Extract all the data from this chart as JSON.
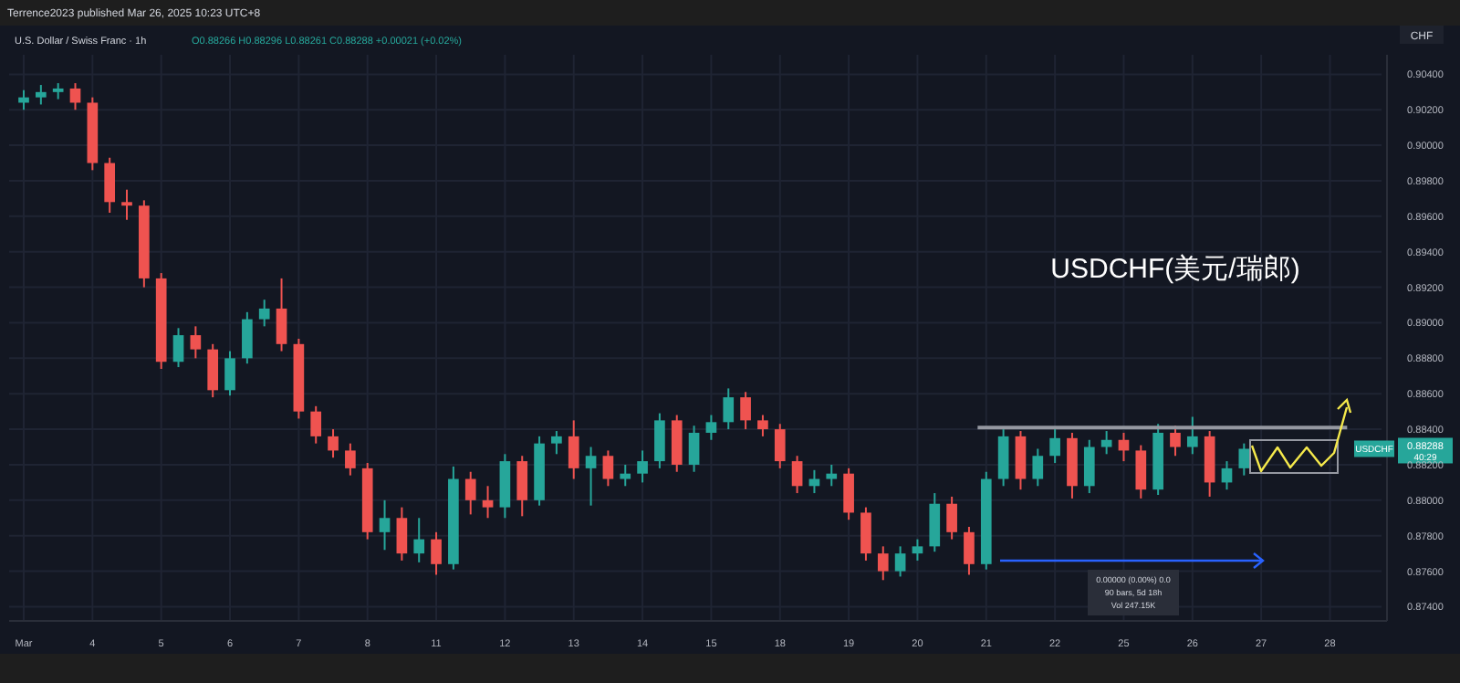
{
  "chart_data": {
    "type": "candlestick",
    "title": "U.S. Dollar / Swiss Franc · 1h",
    "ylabel": "CHF",
    "annotations": [
      "Terrence2023 published Mar 26, 2025 10:23 UTC+8",
      "O0.88266 H0.88296 L0.88261 C0.88288 +0.00021 (+0.02%)",
      "USDCHF(美元/瑞郎)",
      "0.00000 (0.00%) 0.0",
      "90 bars, 5d 18h",
      "Vol 247.15K",
      "USDCHF",
      "0.88288",
      "40:29"
    ],
    "categories": [
      "Mar",
      null,
      null,
      null,
      "4",
      null,
      null,
      null,
      "5",
      null,
      null,
      null,
      "6",
      null,
      null,
      null,
      "7",
      null,
      null,
      null,
      "8",
      null,
      null,
      null,
      "11",
      null,
      null,
      null,
      "12",
      null,
      null,
      null,
      "13",
      null,
      null,
      null,
      "14",
      null,
      null,
      null,
      "15",
      null,
      null,
      null,
      "18",
      null,
      null,
      null,
      "19",
      null,
      null,
      null,
      "20",
      null,
      null,
      null,
      "21",
      null,
      null,
      null,
      "22",
      null,
      null,
      null,
      "25",
      null,
      null,
      null,
      "26",
      null,
      null,
      null,
      "27",
      null,
      null,
      null,
      "28",
      null,
      null,
      null
    ],
    "ohlc": [
      [
        0.9024,
        0.9031,
        0.902,
        0.9027
      ],
      [
        0.9027,
        0.9034,
        0.9023,
        0.903
      ],
      [
        0.903,
        0.9035,
        0.9026,
        0.9032
      ],
      [
        0.9032,
        0.9035,
        0.902,
        0.9024
      ],
      [
        0.9024,
        0.9027,
        0.8986,
        0.899
      ],
      [
        0.899,
        0.8993,
        0.8962,
        0.8968
      ],
      [
        0.8968,
        0.8975,
        0.8958,
        0.8966
      ],
      [
        0.8966,
        0.8969,
        0.892,
        0.8925
      ],
      [
        0.8925,
        0.8928,
        0.8874,
        0.8878
      ],
      [
        0.8878,
        0.8897,
        0.8875,
        0.8893
      ],
      [
        0.8893,
        0.8898,
        0.888,
        0.8885
      ],
      [
        0.8885,
        0.8888,
        0.8858,
        0.8862
      ],
      [
        0.8862,
        0.8884,
        0.8859,
        0.888
      ],
      [
        0.888,
        0.8906,
        0.8877,
        0.8902
      ],
      [
        0.8902,
        0.8913,
        0.8898,
        0.8908
      ],
      [
        0.8908,
        0.8925,
        0.8884,
        0.8888
      ],
      [
        0.8888,
        0.8891,
        0.8846,
        0.885
      ],
      [
        0.885,
        0.8853,
        0.8832,
        0.8836
      ],
      [
        0.8836,
        0.884,
        0.8824,
        0.8828
      ],
      [
        0.8828,
        0.8832,
        0.8814,
        0.8818
      ],
      [
        0.8818,
        0.8821,
        0.8778,
        0.8782
      ],
      [
        0.8782,
        0.88,
        0.8772,
        0.879
      ],
      [
        0.879,
        0.8796,
        0.8766,
        0.877
      ],
      [
        0.877,
        0.879,
        0.8765,
        0.8778
      ],
      [
        0.8778,
        0.8782,
        0.8758,
        0.8764
      ],
      [
        0.8764,
        0.8819,
        0.8761,
        0.8812
      ],
      [
        0.8812,
        0.8816,
        0.8792,
        0.88
      ],
      [
        0.88,
        0.8808,
        0.879,
        0.8796
      ],
      [
        0.8796,
        0.8826,
        0.879,
        0.8822
      ],
      [
        0.8822,
        0.8825,
        0.8791,
        0.88
      ],
      [
        0.88,
        0.8836,
        0.8797,
        0.8832
      ],
      [
        0.8832,
        0.8839,
        0.8826,
        0.8836
      ],
      [
        0.8836,
        0.8845,
        0.8812,
        0.8818
      ],
      [
        0.8818,
        0.883,
        0.8797,
        0.8825
      ],
      [
        0.8825,
        0.8828,
        0.8808,
        0.8812
      ],
      [
        0.8812,
        0.882,
        0.8808,
        0.8815
      ],
      [
        0.8815,
        0.8828,
        0.881,
        0.8822
      ],
      [
        0.8822,
        0.8849,
        0.8818,
        0.8845
      ],
      [
        0.8845,
        0.8848,
        0.8816,
        0.882
      ],
      [
        0.882,
        0.8842,
        0.8816,
        0.8838
      ],
      [
        0.8838,
        0.8848,
        0.8834,
        0.8844
      ],
      [
        0.8844,
        0.8863,
        0.884,
        0.8858
      ],
      [
        0.8858,
        0.8861,
        0.884,
        0.8845
      ],
      [
        0.8845,
        0.8848,
        0.8836,
        0.884
      ],
      [
        0.884,
        0.8843,
        0.8818,
        0.8822
      ],
      [
        0.8822,
        0.8825,
        0.8804,
        0.8808
      ],
      [
        0.8808,
        0.8817,
        0.8804,
        0.8812
      ],
      [
        0.8812,
        0.882,
        0.8808,
        0.8815
      ],
      [
        0.8815,
        0.8818,
        0.8789,
        0.8793
      ],
      [
        0.8793,
        0.8796,
        0.8766,
        0.877
      ],
      [
        0.877,
        0.8774,
        0.8755,
        0.876
      ],
      [
        0.876,
        0.8774,
        0.8757,
        0.877
      ],
      [
        0.877,
        0.8778,
        0.8766,
        0.8774
      ],
      [
        0.8774,
        0.8804,
        0.8771,
        0.8798
      ],
      [
        0.8798,
        0.8802,
        0.8778,
        0.8782
      ],
      [
        0.8782,
        0.8785,
        0.8758,
        0.8764
      ],
      [
        0.8764,
        0.8816,
        0.8761,
        0.8812
      ],
      [
        0.8812,
        0.884,
        0.8808,
        0.8836
      ],
      [
        0.8836,
        0.8839,
        0.8806,
        0.8812
      ],
      [
        0.8812,
        0.8829,
        0.8808,
        0.8825
      ],
      [
        0.8825,
        0.884,
        0.8821,
        0.8835
      ],
      [
        0.8835,
        0.8838,
        0.8801,
        0.8808
      ],
      [
        0.8808,
        0.8834,
        0.8804,
        0.883
      ],
      [
        0.883,
        0.8839,
        0.8826,
        0.8834
      ],
      [
        0.8834,
        0.8838,
        0.8822,
        0.8828
      ],
      [
        0.8828,
        0.8831,
        0.8801,
        0.8806
      ],
      [
        0.8806,
        0.8843,
        0.8803,
        0.8838
      ],
      [
        0.8838,
        0.8842,
        0.8825,
        0.883
      ],
      [
        0.883,
        0.8847,
        0.8826,
        0.8836
      ],
      [
        0.8836,
        0.8839,
        0.8802,
        0.881
      ],
      [
        0.881,
        0.8822,
        0.8806,
        0.8818
      ],
      [
        0.8818,
        0.8832,
        0.8814,
        0.8829
      ],
      null,
      null,
      null,
      null,
      null,
      null,
      null,
      null
    ],
    "ylim": [
      0.8732,
      0.9051
    ],
    "yticks": [
      {
        "value": 0.874,
        "label": "0.87400"
      },
      {
        "value": 0.876,
        "label": "0.87600"
      },
      {
        "value": 0.878,
        "label": "0.87800"
      },
      {
        "value": 0.88,
        "label": "0.88000"
      },
      {
        "value": 0.882,
        "label": "0.88200"
      },
      {
        "value": 0.884,
        "label": "0.88400"
      },
      {
        "value": 0.886,
        "label": "0.88600"
      },
      {
        "value": 0.888,
        "label": "0.88800"
      },
      {
        "value": 0.89,
        "label": "0.89000"
      },
      {
        "value": 0.892,
        "label": "0.89200"
      },
      {
        "value": 0.894,
        "label": "0.89400"
      },
      {
        "value": 0.896,
        "label": "0.89600"
      },
      {
        "value": 0.898,
        "label": "0.89800"
      },
      {
        "value": 0.9,
        "label": "0.90000"
      },
      {
        "value": 0.902,
        "label": "0.90200"
      },
      {
        "value": 0.904,
        "label": "0.90400"
      }
    ],
    "ref_lines": [
      {
        "axis": "y",
        "value": 0.8841,
        "color": "#9598a1"
      }
    ],
    "grid": true
  }
}
